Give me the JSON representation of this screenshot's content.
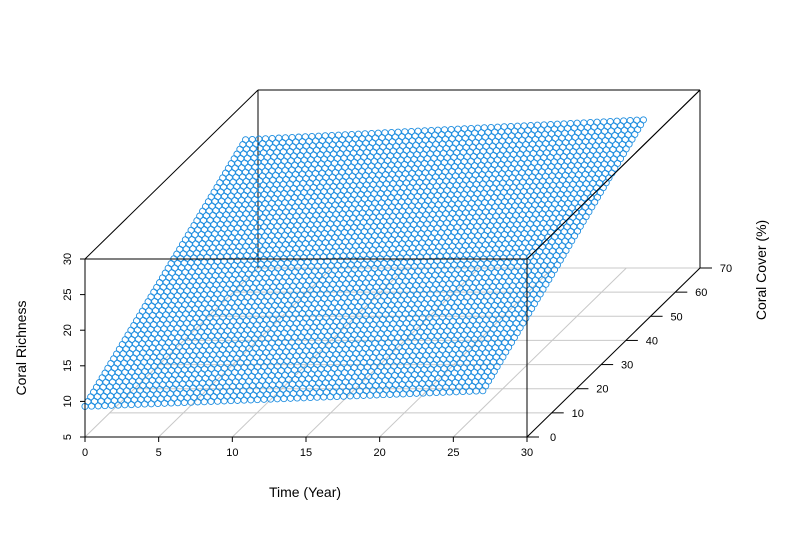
{
  "chart_data": {
    "type": "scatter",
    "title": "",
    "xlabel": "Time (Year)",
    "ylabel": "Coral Cover (%)",
    "zlabel": "Coral Richness",
    "x_ticks": [
      "0",
      "5",
      "10",
      "15",
      "20",
      "25",
      "30"
    ],
    "y_ticks": [
      "0",
      "10",
      "20",
      "30",
      "40",
      "50",
      "60",
      "70"
    ],
    "z_ticks": [
      "5",
      "10",
      "15",
      "20",
      "25",
      "30"
    ],
    "xlim": [
      0,
      30
    ],
    "ylim": [
      0,
      70
    ],
    "zlim": [
      5,
      30
    ],
    "grid": true,
    "marker": "open-circle",
    "point_color": "#1f8ee0",
    "surface_corners": [
      {
        "x": 0,
        "y": 0,
        "z": 9.3
      },
      {
        "x": 27,
        "y": 0,
        "z": 11.5
      },
      {
        "x": 27,
        "y": 65,
        "z": 27.5
      },
      {
        "x": 0,
        "y": 65,
        "z": 24.7
      }
    ]
  }
}
